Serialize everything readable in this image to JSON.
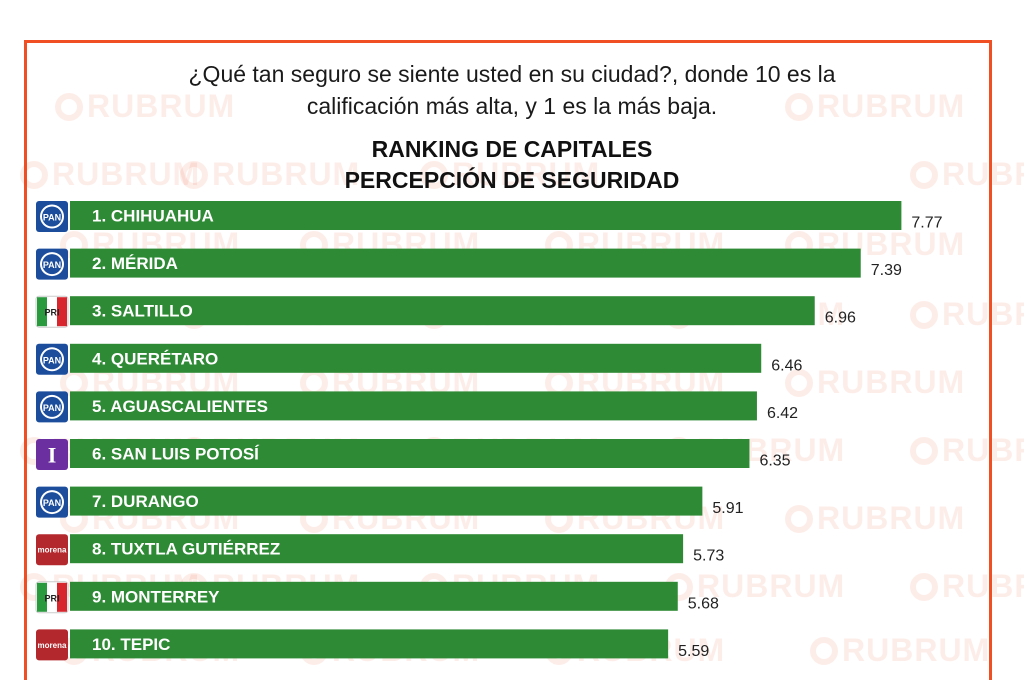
{
  "header": {
    "question_line1": "¿Qué tan seguro se siente usted en su ciudad?, donde 10 es la",
    "question_line2": "calificación más alta, y  1 es la más baja.",
    "title_line1": "RANKING DE CAPITALES",
    "title_line2": "PERCEPCIÓN DE SEGURIDAD"
  },
  "watermark": {
    "text": "RUBRUM"
  },
  "colors": {
    "bar": "#2e8a35",
    "frame": "#f04e23",
    "pan": "#1b4d9c",
    "pri_green": "#2a9a3f",
    "pri_red": "#d7262e",
    "independiente": "#6b2fa0",
    "morena": "#b3282d"
  },
  "chart_data": {
    "type": "bar",
    "orientation": "horizontal",
    "title": "RANKING DE CAPITALES PERCEPCIÓN DE SEGURIDAD",
    "xlabel": "",
    "ylabel": "",
    "categories": [
      "1. CHIHUAHUA",
      "2. MÉRIDA",
      "3. SALTILLO",
      "4. QUERÉTARO",
      "5. AGUASCALIENTES",
      "6. SAN LUIS POTOSÍ",
      "7. DURANGO",
      "8. TUXTLA GUTIÉRREZ",
      "9. MONTERREY",
      "10. TEPIC"
    ],
    "values": [
      7.77,
      7.39,
      6.96,
      6.46,
      6.42,
      6.35,
      5.91,
      5.73,
      5.68,
      5.59
    ],
    "value_labels": [
      "7.77",
      "7.39",
      "6.96",
      "6.46",
      "6.42",
      "6.35",
      "5.91",
      "5.73",
      "5.68",
      "5.59"
    ],
    "party_icons": [
      "PAN",
      "PAN",
      "PRI",
      "PAN",
      "PAN",
      "I",
      "PAN",
      "morena",
      "PRI",
      "morena"
    ],
    "grid": false,
    "legend": "none"
  }
}
